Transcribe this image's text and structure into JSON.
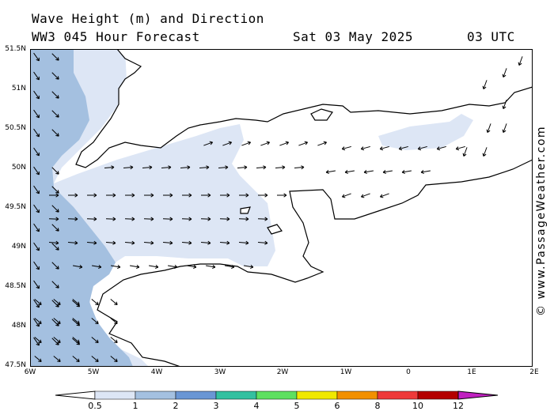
{
  "title": {
    "line1": "Wave Height (m) and Direction",
    "model": "WW3 045 Hour Forecast",
    "date": "Sat 03 May 2025",
    "time": "03 UTC"
  },
  "credit": "© www.PassageWeather.com",
  "lat_labels": [
    "51.5N",
    "51N",
    "50.5N",
    "50N",
    "49.5N",
    "49N",
    "48.5N",
    "48N",
    "47.5N"
  ],
  "lon_labels": [
    "6W",
    "5W",
    "4W",
    "3W",
    "2W",
    "1W",
    "0",
    "1E",
    "2E"
  ],
  "colors": {
    "land": "#ffffff",
    "coast": "#000000",
    "band_0_5_1": "#dde6f5",
    "band_1_2": "#a4c0e0",
    "arrow": "#000000"
  },
  "legend": {
    "labels": [
      "0.5",
      "1",
      "2",
      "3",
      "4",
      "5",
      "6",
      "8",
      "10",
      "12"
    ],
    "colors": [
      "#ffffff",
      "#dde6f5",
      "#a4c0e0",
      "#6a96d4",
      "#33c0a0",
      "#5ee060",
      "#f0e800",
      "#f29000",
      "#ee3a3a",
      "#b40000",
      "#c020c0"
    ]
  },
  "chart_data": {
    "type": "map",
    "variable": "Wave Height (m) and Direction",
    "lat_range": [
      47.5,
      51.5
    ],
    "lon_range": [
      -6,
      2
    ],
    "wave_height_bands": [
      {
        "range_m": "1-2",
        "area": "western approaches, west of Brittany and Cornwall"
      },
      {
        "range_m": "0.5-1",
        "area": "central English Channel and Bay of Biscay coast"
      },
      {
        "range_m": "0.5-1",
        "area": "eastern Channel patch south of Sussex"
      }
    ],
    "directions": "westerly waves heading east in western and central Channel; easterly waves heading west in eastern Channel; northerly near Dover Strait"
  }
}
